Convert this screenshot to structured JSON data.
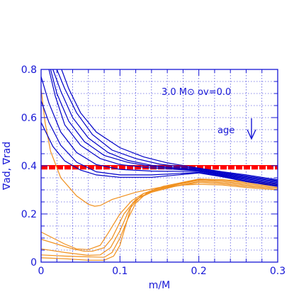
{
  "chart_data": {
    "type": "line",
    "xlabel": "m/M",
    "ylabel": "∇ad, ∇rad",
    "xlim": [
      0,
      0.3
    ],
    "ylim": [
      0,
      0.8
    ],
    "x_ticks": [
      "0",
      "0.1",
      "0.2",
      "0.3"
    ],
    "y_ticks": [
      "0",
      "0.2",
      "0.4",
      "0.6",
      "0.8"
    ],
    "grid": true,
    "annotations": {
      "model": "3.0 M⊙ ov=0.0",
      "age": "age"
    },
    "colors": {
      "axis": "#1616d6",
      "grid": "#1616d6",
      "radiative": "#0000c8",
      "adiabatic_profiles": "#f0901e",
      "adiabatic_reference": "#ff0000"
    },
    "adiabatic_reference": {
      "y": 0.392
    },
    "series_radiative": [
      {
        "values": [
          [
            0.026,
            0.8
          ],
          [
            0.035,
            0.72
          ],
          [
            0.05,
            0.62
          ],
          [
            0.07,
            0.54
          ],
          [
            0.1,
            0.475
          ],
          [
            0.13,
            0.437
          ],
          [
            0.16,
            0.412
          ],
          [
            0.2,
            0.39
          ],
          [
            0.23,
            0.375
          ],
          [
            0.26,
            0.362
          ],
          [
            0.3,
            0.342
          ]
        ]
      },
      {
        "values": [
          [
            0.02,
            0.8
          ],
          [
            0.03,
            0.72
          ],
          [
            0.045,
            0.62
          ],
          [
            0.065,
            0.53
          ],
          [
            0.09,
            0.465
          ],
          [
            0.12,
            0.43
          ],
          [
            0.15,
            0.407
          ],
          [
            0.2,
            0.387
          ],
          [
            0.23,
            0.372
          ],
          [
            0.26,
            0.358
          ],
          [
            0.3,
            0.338
          ]
        ]
      },
      {
        "values": [
          [
            0.015,
            0.8
          ],
          [
            0.025,
            0.71
          ],
          [
            0.04,
            0.6
          ],
          [
            0.06,
            0.515
          ],
          [
            0.085,
            0.455
          ],
          [
            0.11,
            0.422
          ],
          [
            0.14,
            0.402
          ],
          [
            0.2,
            0.384
          ],
          [
            0.23,
            0.369
          ],
          [
            0.26,
            0.354
          ],
          [
            0.3,
            0.334
          ]
        ]
      },
      {
        "values": [
          [
            0.012,
            0.8
          ],
          [
            0.02,
            0.7
          ],
          [
            0.035,
            0.585
          ],
          [
            0.055,
            0.5
          ],
          [
            0.08,
            0.443
          ],
          [
            0.11,
            0.414
          ],
          [
            0.14,
            0.397
          ],
          [
            0.2,
            0.381
          ],
          [
            0.23,
            0.366
          ],
          [
            0.26,
            0.35
          ],
          [
            0.3,
            0.33
          ]
        ]
      },
      {
        "values": [
          [
            0.01,
            0.8
          ],
          [
            0.018,
            0.69
          ],
          [
            0.03,
            0.57
          ],
          [
            0.05,
            0.485
          ],
          [
            0.075,
            0.43
          ],
          [
            0.1,
            0.405
          ],
          [
            0.14,
            0.391
          ],
          [
            0.2,
            0.379
          ],
          [
            0.23,
            0.363
          ],
          [
            0.26,
            0.346
          ],
          [
            0.3,
            0.326
          ]
        ]
      },
      {
        "values": [
          [
            0.0,
            0.77
          ],
          [
            0.01,
            0.66
          ],
          [
            0.025,
            0.54
          ],
          [
            0.045,
            0.455
          ],
          [
            0.07,
            0.405
          ],
          [
            0.1,
            0.385
          ],
          [
            0.14,
            0.378
          ],
          [
            0.2,
            0.376
          ],
          [
            0.23,
            0.36
          ],
          [
            0.26,
            0.342
          ],
          [
            0.3,
            0.322
          ]
        ]
      },
      {
        "values": [
          [
            0.0,
            0.67
          ],
          [
            0.01,
            0.58
          ],
          [
            0.025,
            0.485
          ],
          [
            0.045,
            0.415
          ],
          [
            0.07,
            0.375
          ],
          [
            0.1,
            0.362
          ],
          [
            0.14,
            0.362
          ],
          [
            0.2,
            0.372
          ],
          [
            0.23,
            0.357
          ],
          [
            0.26,
            0.338
          ],
          [
            0.3,
            0.318
          ]
        ]
      },
      {
        "values": [
          [
            0.0,
            0.58
          ],
          [
            0.015,
            0.48
          ],
          [
            0.03,
            0.42
          ],
          [
            0.05,
            0.382
          ],
          [
            0.07,
            0.362
          ],
          [
            0.1,
            0.352
          ],
          [
            0.14,
            0.352
          ],
          [
            0.2,
            0.37
          ],
          [
            0.23,
            0.354
          ],
          [
            0.26,
            0.334
          ],
          [
            0.3,
            0.314
          ]
        ]
      }
    ],
    "series_adiabatic_profiles": [
      {
        "values": [
          [
            0.0,
            0.72
          ],
          [
            0.005,
            0.58
          ],
          [
            0.012,
            0.46
          ],
          [
            0.025,
            0.35
          ],
          [
            0.045,
            0.275
          ],
          [
            0.06,
            0.24
          ],
          [
            0.068,
            0.232
          ],
          [
            0.075,
            0.235
          ],
          [
            0.09,
            0.26
          ],
          [
            0.12,
            0.29
          ],
          [
            0.15,
            0.31
          ],
          [
            0.18,
            0.32
          ],
          [
            0.2,
            0.323
          ],
          [
            0.23,
            0.32
          ],
          [
            0.26,
            0.31
          ],
          [
            0.3,
            0.3
          ]
        ]
      },
      {
        "values": [
          [
            0.0,
            0.125
          ],
          [
            0.015,
            0.1
          ],
          [
            0.03,
            0.075
          ],
          [
            0.045,
            0.055
          ],
          [
            0.06,
            0.052
          ],
          [
            0.075,
            0.07
          ],
          [
            0.085,
            0.12
          ],
          [
            0.1,
            0.2
          ],
          [
            0.115,
            0.255
          ],
          [
            0.13,
            0.285
          ],
          [
            0.16,
            0.31
          ],
          [
            0.2,
            0.33
          ],
          [
            0.23,
            0.325
          ],
          [
            0.26,
            0.315
          ],
          [
            0.3,
            0.305
          ]
        ]
      },
      {
        "values": [
          [
            0.0,
            0.095
          ],
          [
            0.02,
            0.075
          ],
          [
            0.04,
            0.055
          ],
          [
            0.055,
            0.045
          ],
          [
            0.065,
            0.045
          ],
          [
            0.08,
            0.06
          ],
          [
            0.09,
            0.1
          ],
          [
            0.105,
            0.2
          ],
          [
            0.12,
            0.26
          ],
          [
            0.14,
            0.29
          ],
          [
            0.17,
            0.315
          ],
          [
            0.2,
            0.335
          ],
          [
            0.23,
            0.33
          ],
          [
            0.26,
            0.32
          ],
          [
            0.3,
            0.31
          ]
        ]
      },
      {
        "values": [
          [
            0.0,
            0.055
          ],
          [
            0.03,
            0.04
          ],
          [
            0.06,
            0.028
          ],
          [
            0.075,
            0.03
          ],
          [
            0.088,
            0.06
          ],
          [
            0.1,
            0.13
          ],
          [
            0.112,
            0.22
          ],
          [
            0.125,
            0.27
          ],
          [
            0.145,
            0.3
          ],
          [
            0.17,
            0.32
          ],
          [
            0.2,
            0.34
          ],
          [
            0.23,
            0.335
          ],
          [
            0.26,
            0.325
          ],
          [
            0.3,
            0.315
          ]
        ]
      },
      {
        "values": [
          [
            0.0,
            0.03
          ],
          [
            0.03,
            0.025
          ],
          [
            0.06,
            0.022
          ],
          [
            0.08,
            0.02
          ],
          [
            0.09,
            0.04
          ],
          [
            0.1,
            0.1
          ],
          [
            0.11,
            0.18
          ],
          [
            0.12,
            0.245
          ],
          [
            0.135,
            0.29
          ],
          [
            0.16,
            0.315
          ],
          [
            0.2,
            0.343
          ],
          [
            0.23,
            0.34
          ],
          [
            0.26,
            0.33
          ],
          [
            0.3,
            0.32
          ]
        ]
      },
      {
        "values": [
          [
            0.0,
            0.018
          ],
          [
            0.03,
            0.014
          ],
          [
            0.06,
            0.008
          ],
          [
            0.08,
            0.008
          ],
          [
            0.092,
            0.025
          ],
          [
            0.1,
            0.07
          ],
          [
            0.108,
            0.16
          ],
          [
            0.115,
            0.24
          ],
          [
            0.13,
            0.285
          ],
          [
            0.155,
            0.315
          ],
          [
            0.2,
            0.345
          ],
          [
            0.23,
            0.342
          ],
          [
            0.26,
            0.335
          ],
          [
            0.3,
            0.325
          ]
        ]
      }
    ]
  }
}
